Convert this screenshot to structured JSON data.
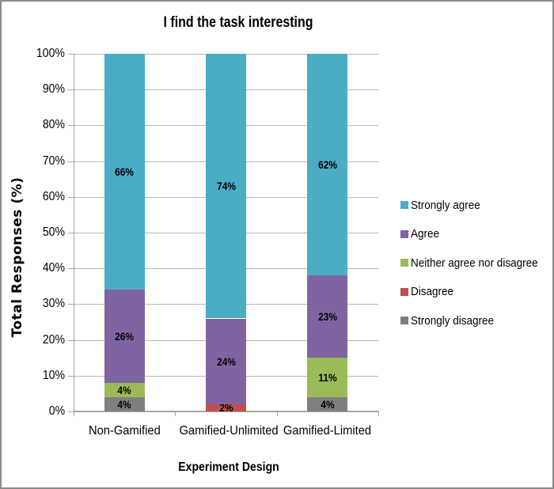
{
  "window": {
    "background": "#FFFFFF",
    "border_color": "#8A8A8A"
  },
  "chart_data": {
    "type": "bar",
    "subtype": "stacked-100-percent",
    "title": "I find the task interesting",
    "xlabel": "Experiment Design",
    "ylabel": "Total Responses (%)",
    "ylim": [
      0,
      100
    ],
    "ytick_step": 10,
    "tick_suffix": "%",
    "grid": true,
    "legend_position": "right",
    "categories": [
      "Non-Gamified",
      "Gamified-Unlimited",
      "Gamified-Limited"
    ],
    "series": [
      {
        "name": "Strongly disagree",
        "color": "#7F7F7F",
        "values": [
          4,
          0,
          4
        ]
      },
      {
        "name": "Disagree",
        "color": "#C0504D",
        "values": [
          0,
          2,
          0
        ]
      },
      {
        "name": "Neither agree nor disagree",
        "color": "#9BBB59",
        "values": [
          4,
          0,
          11
        ]
      },
      {
        "name": "Agree",
        "color": "#8064A2",
        "values": [
          26,
          24,
          23
        ]
      },
      {
        "name": "Strongly agree",
        "color": "#4BACC6",
        "values": [
          66,
          74,
          62
        ]
      }
    ],
    "stacking_order": "bottom-to-top",
    "data_labels": {
      "Non-Gamified": {
        "Strongly disagree": "4%",
        "Neither agree nor disagree": "4%",
        "Agree": "26%",
        "Strongly agree": "66%"
      },
      "Gamified-Unlimited": {
        "Disagree": "2%",
        "Agree": "24%",
        "Strongly agree": "74%"
      },
      "Gamified-Limited": {
        "Strongly disagree": "4%",
        "Neither agree nor disagree": "11%",
        "Agree": "23%",
        "Strongly agree": "62%"
      }
    },
    "legend": [
      "Strongly agree",
      "Agree",
      "Neither agree nor disagree",
      "Disagree",
      "Strongly disagree"
    ],
    "style": {
      "gridline_color": "#B8B8B8",
      "axis_color": "#A6A6A6",
      "label_color": "#000000"
    }
  }
}
